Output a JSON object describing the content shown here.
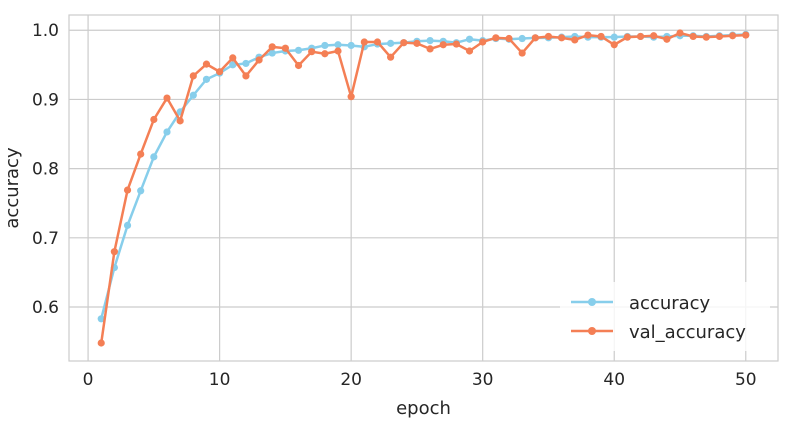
{
  "chart_data": {
    "type": "line",
    "xlabel": "epoch",
    "ylabel": "accuracy",
    "xlim": [
      -1.45,
      52.45
    ],
    "ylim": [
      0.522,
      1.022
    ],
    "xticks": [
      0,
      10,
      20,
      30,
      40,
      50
    ],
    "yticks": [
      0.6,
      0.7,
      0.8,
      0.9,
      1.0
    ],
    "xtick_labels": [
      "0",
      "10",
      "20",
      "30",
      "40",
      "50"
    ],
    "ytick_labels": [
      "0.6",
      "0.7",
      "0.8",
      "0.9",
      "1.0"
    ],
    "grid": true,
    "legend_position": "lower-right",
    "x": [
      1,
      2,
      3,
      4,
      5,
      6,
      7,
      8,
      9,
      10,
      11,
      12,
      13,
      14,
      15,
      16,
      17,
      18,
      19,
      20,
      21,
      22,
      23,
      24,
      25,
      26,
      27,
      28,
      29,
      30,
      31,
      32,
      33,
      34,
      35,
      36,
      37,
      38,
      39,
      40,
      41,
      42,
      43,
      44,
      45,
      46,
      47,
      48,
      49,
      50
    ],
    "series": [
      {
        "name": "accuracy",
        "color": "#87ceeb",
        "values": [
          0.583,
          0.657,
          0.718,
          0.768,
          0.817,
          0.853,
          0.882,
          0.906,
          0.929,
          0.938,
          0.95,
          0.952,
          0.961,
          0.967,
          0.97,
          0.971,
          0.974,
          0.978,
          0.979,
          0.978,
          0.976,
          0.98,
          0.981,
          0.982,
          0.984,
          0.985,
          0.984,
          0.982,
          0.987,
          0.985,
          0.988,
          0.987,
          0.988,
          0.989,
          0.989,
          0.99,
          0.991,
          0.99,
          0.99,
          0.99,
          0.991,
          0.991,
          0.99,
          0.991,
          0.992,
          0.992,
          0.991,
          0.992,
          0.993,
          0.994
        ]
      },
      {
        "name": "val_accuracy",
        "color": "#f47f55",
        "values": [
          0.548,
          0.68,
          0.769,
          0.821,
          0.871,
          0.902,
          0.869,
          0.934,
          0.951,
          0.94,
          0.96,
          0.934,
          0.957,
          0.976,
          0.974,
          0.949,
          0.969,
          0.966,
          0.97,
          0.904,
          0.983,
          0.983,
          0.961,
          0.982,
          0.981,
          0.973,
          0.979,
          0.98,
          0.97,
          0.983,
          0.989,
          0.988,
          0.967,
          0.989,
          0.991,
          0.989,
          0.986,
          0.993,
          0.991,
          0.979,
          0.99,
          0.991,
          0.992,
          0.987,
          0.996,
          0.991,
          0.99,
          0.991,
          0.992,
          0.993
        ]
      }
    ]
  }
}
